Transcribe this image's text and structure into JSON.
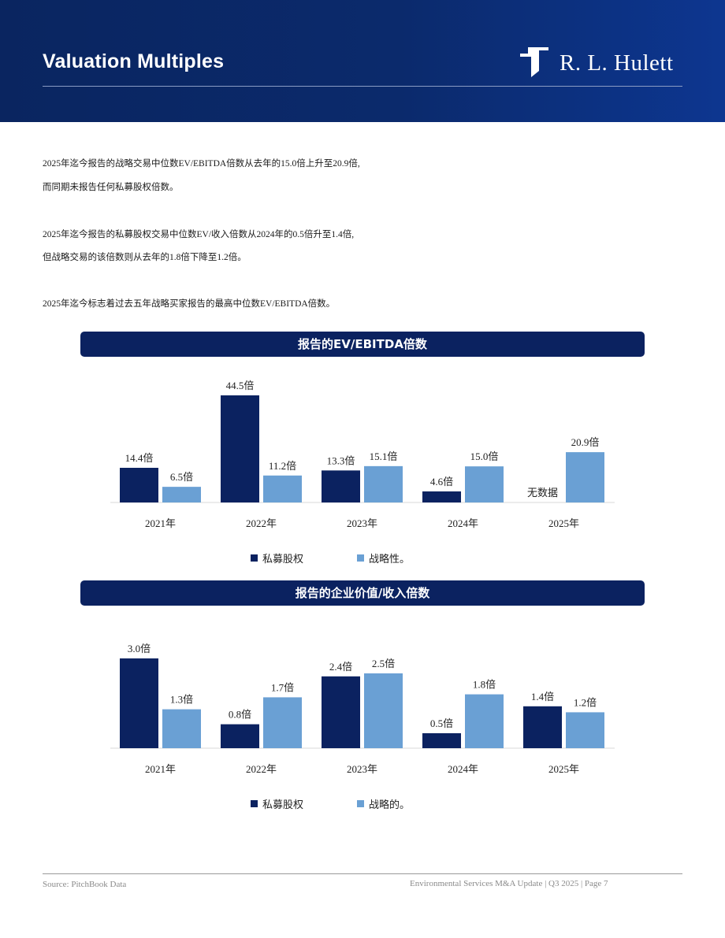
{
  "header": {
    "title": "Valuation Multiples",
    "logo_text": "R. L. Hulett",
    "logo_icon": "rl-hulett-logo-mark"
  },
  "paragraphs": [
    "2025年迄今报告的战略交易中位数EV/EBITDA倍数从去年的15.0倍上升至20.9倍,",
    "而同期未报告任何私募股权倍数。",
    "2025年迄今报告的私募股权交易中位数EV/收入倍数从2024年的0.5倍升至1.4倍,",
    "但战略交易的该倍数则从去年的1.8倍下降至1.2倍。",
    "2025年迄今标志着过去五年战略买家报告的最高中位数EV/EBITDA倍数。"
  ],
  "colors": {
    "header_bg": "#0b2a6c",
    "banner_bg": "#0b2260",
    "private_equity": "#0b2260",
    "strategic": "#6aa0d4"
  },
  "chart_data": [
    {
      "type": "bar",
      "title": "报告的EV/EBITDA倍数",
      "categories": [
        "2021年",
        "2022年",
        "2023年",
        "2024年",
        "2025年"
      ],
      "series": [
        {
          "name": "私募股权",
          "values": [
            14.4,
            44.5,
            13.3,
            4.6,
            null
          ],
          "labels": [
            "14.4倍",
            "44.5倍",
            "13.3倍",
            "4.6倍",
            "无数据"
          ]
        },
        {
          "name": "战略性。",
          "values": [
            6.5,
            11.2,
            15.1,
            15.0,
            20.9
          ],
          "labels": [
            "6.5倍",
            "11.2倍",
            "15.1倍",
            "15.0倍",
            "20.9倍"
          ]
        }
      ],
      "ylim": [
        0,
        44.5
      ],
      "grid": false,
      "legend": "bottom"
    },
    {
      "type": "bar",
      "title": "报告的企业价值/收入倍数",
      "categories": [
        "2021年",
        "2022年",
        "2023年",
        "2024年",
        "2025年"
      ],
      "series": [
        {
          "name": "私募股权",
          "values": [
            3.0,
            0.8,
            2.4,
            0.5,
            1.4
          ],
          "labels": [
            "3.0倍",
            "0.8倍",
            "2.4倍",
            "0.5倍",
            "1.4倍"
          ]
        },
        {
          "name": "战略的。",
          "values": [
            1.3,
            1.7,
            2.5,
            1.8,
            1.2
          ],
          "labels": [
            "1.3倍",
            "1.7倍",
            "2.5倍",
            "1.8倍",
            "1.2倍"
          ]
        }
      ],
      "ylim": [
        0,
        3.0
      ],
      "grid": false,
      "legend": "bottom"
    }
  ],
  "footer": {
    "source": "Source: PitchBook Data",
    "right": "Environmental Services M&A Update | Q3 2025 | Page 7"
  }
}
